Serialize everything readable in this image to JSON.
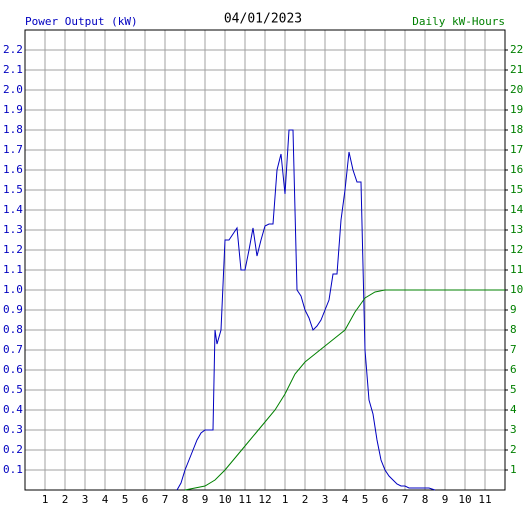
{
  "chart_data": {
    "type": "line",
    "title": "04/01/2023",
    "y_label": "Power Output (kW)",
    "y2_label": "Daily kW-Hours",
    "y_label_color": "#0000c0",
    "y2_label_color": "#008000",
    "grid": true,
    "xlim": [
      0,
      24
    ],
    "xticks": [
      1,
      2,
      3,
      4,
      5,
      6,
      7,
      8,
      9,
      10,
      11,
      12,
      {
        "value": 13,
        "label": "1"
      },
      {
        "value": 14,
        "label": "2"
      },
      {
        "value": 15,
        "label": "3"
      },
      {
        "value": 16,
        "label": "4"
      },
      {
        "value": 17,
        "label": "5"
      },
      {
        "value": 18,
        "label": "6"
      },
      {
        "value": 19,
        "label": "7"
      },
      {
        "value": 20,
        "label": "8"
      },
      {
        "value": 21,
        "label": "9"
      },
      {
        "value": 22,
        "label": "10"
      },
      {
        "value": 23,
        "label": "11"
      }
    ],
    "ylim": [
      0,
      2.3
    ],
    "yticks": [
      0.1,
      0.2,
      0.3,
      0.4,
      0.5,
      0.6,
      0.7,
      0.8,
      0.9,
      {
        "value": 1,
        "label": "1.0"
      },
      1.1,
      1.2,
      1.3,
      1.4,
      1.5,
      1.6,
      1.7,
      1.8,
      1.9,
      {
        "value": 2,
        "label": "2.0"
      },
      2.1,
      2.2
    ],
    "y2lim": [
      0,
      23
    ],
    "y2ticks": [
      1,
      2,
      3,
      4,
      5,
      6,
      7,
      8,
      9,
      10,
      11,
      12,
      13,
      14,
      15,
      16,
      17,
      18,
      19,
      20,
      21,
      22
    ],
    "series": [
      {
        "name": "Power Output (kW)",
        "color": "#0000c0",
        "axis": "y",
        "x": [
          7.6,
          7.8,
          8.0,
          8.2,
          8.4,
          8.6,
          8.8,
          9.0,
          9.2,
          9.4,
          9.5,
          9.6,
          9.8,
          10.0,
          10.2,
          10.4,
          10.6,
          10.8,
          11.0,
          11.2,
          11.4,
          11.6,
          11.8,
          12.0,
          12.2,
          12.4,
          12.6,
          12.8,
          13.0,
          13.2,
          13.4,
          13.6,
          13.8,
          14.0,
          14.2,
          14.4,
          14.6,
          14.8,
          15.0,
          15.2,
          15.4,
          15.6,
          15.8,
          16.0,
          16.2,
          16.4,
          16.6,
          16.8,
          17.0,
          17.2,
          17.4,
          17.6,
          17.8,
          18.0,
          18.2,
          18.4,
          18.6,
          18.8,
          19.0,
          19.2,
          19.4,
          19.6,
          19.8,
          20.0,
          20.2,
          20.5
        ],
        "values": [
          0,
          0.035,
          0.1,
          0.15,
          0.2,
          0.25,
          0.285,
          0.3,
          0.3,
          0.3,
          0.8,
          0.73,
          0.8,
          1.25,
          1.25,
          1.28,
          1.31,
          1.1,
          1.1,
          1.2,
          1.31,
          1.17,
          1.25,
          1.32,
          1.33,
          1.33,
          1.6,
          1.68,
          1.48,
          1.8,
          1.8,
          1.0,
          0.97,
          0.9,
          0.86,
          0.8,
          0.82,
          0.85,
          0.9,
          0.95,
          1.08,
          1.08,
          1.35,
          1.5,
          1.69,
          1.6,
          1.54,
          1.54,
          0.7,
          0.45,
          0.38,
          0.25,
          0.15,
          0.1,
          0.07,
          0.05,
          0.03,
          0.02,
          0.02,
          0.01,
          0.01,
          0.01,
          0.01,
          0.01,
          0.01,
          0
        ]
      },
      {
        "name": "Daily kW-Hours",
        "color": "#008000",
        "axis": "y2",
        "x": [
          8.0,
          9.0,
          9.5,
          10.0,
          10.5,
          11.0,
          11.5,
          12.0,
          12.5,
          13.0,
          13.5,
          14.0,
          14.5,
          15.0,
          15.5,
          16.0,
          16.5,
          17.0,
          17.5,
          18.0,
          24.0
        ],
        "values": [
          0,
          0.2,
          0.5,
          1.0,
          1.6,
          2.2,
          2.8,
          3.4,
          4.0,
          4.8,
          5.8,
          6.4,
          6.8,
          7.2,
          7.6,
          8.0,
          8.9,
          9.6,
          9.9,
          10.0,
          10.0
        ]
      }
    ]
  }
}
